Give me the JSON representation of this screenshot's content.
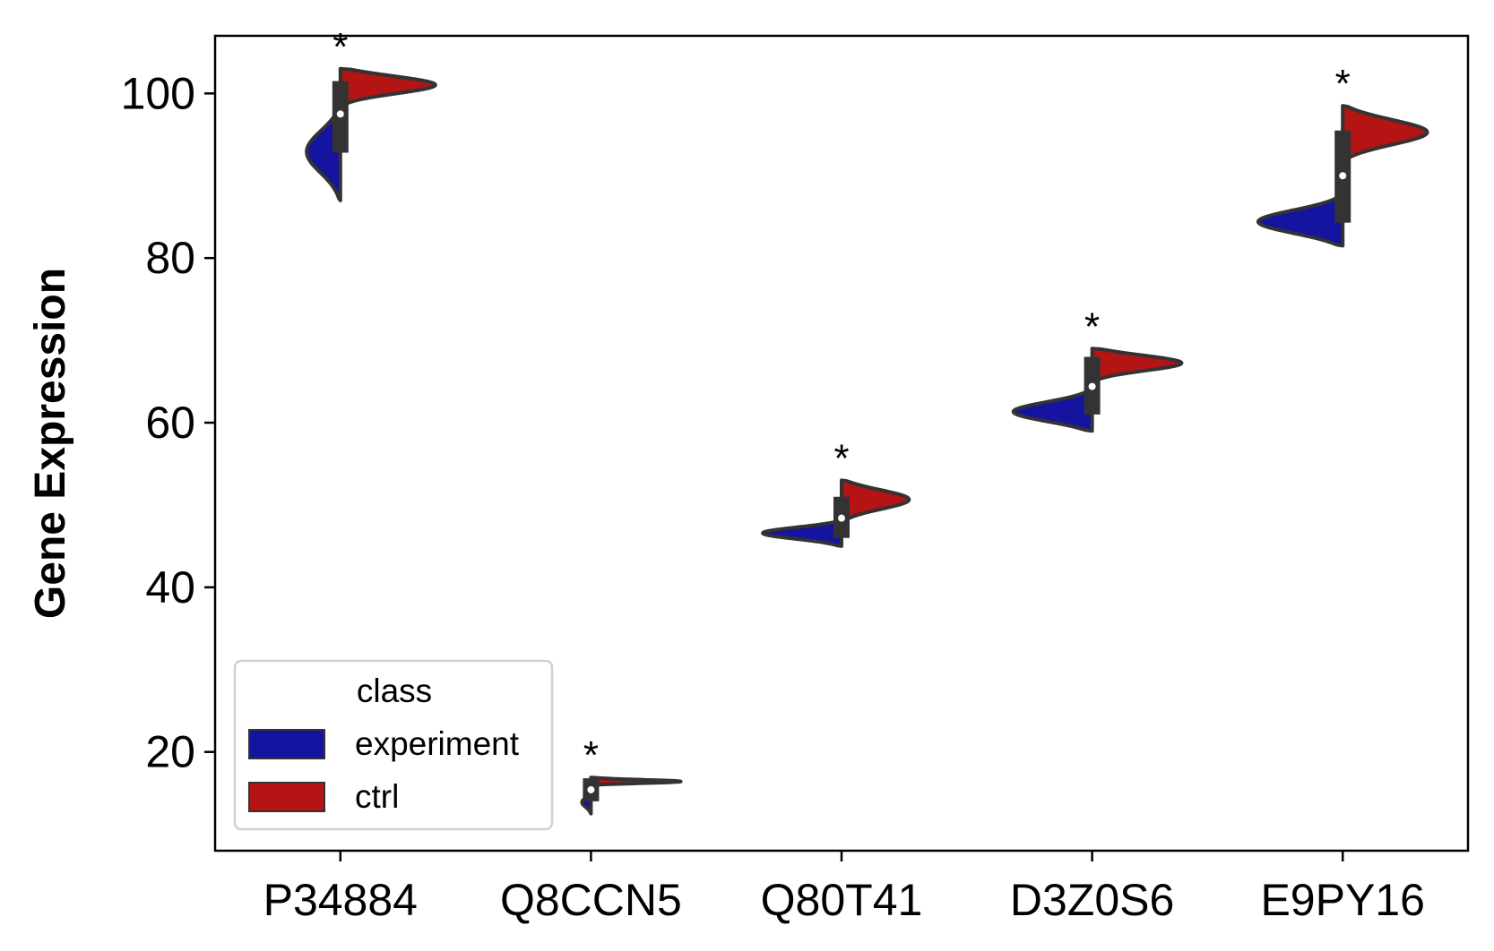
{
  "chart_data": {
    "type": "violin",
    "split": true,
    "title": "",
    "xlabel": "",
    "ylabel": "Gene Expression",
    "ylim": [
      8,
      107
    ],
    "yticks": [
      20,
      40,
      60,
      80,
      100
    ],
    "grid": false,
    "categories": [
      "P34884",
      "Q8CCN5",
      "Q80T41",
      "D3Z0S6",
      "E9PY16"
    ],
    "significance": [
      "*",
      "*",
      "*",
      "*",
      "*"
    ],
    "legend": {
      "title": "class",
      "placement": "lower-left",
      "entries": [
        {
          "name": "experiment",
          "color": "#1414a0"
        },
        {
          "name": "ctrl",
          "color": "#b41414"
        }
      ]
    },
    "series": [
      {
        "name": "experiment",
        "color": "#1414a0",
        "side": "left",
        "violins": [
          {
            "min": 87,
            "max": 98,
            "mode": 93,
            "spread": 0.3
          },
          {
            "min": 12.5,
            "max": 15,
            "mode": 13.9,
            "spread": 0.08
          },
          {
            "min": 45,
            "max": 48,
            "mode": 46.6,
            "spread": 0.7
          },
          {
            "min": 59,
            "max": 64,
            "mode": 61.3,
            "spread": 0.7
          },
          {
            "min": 81.5,
            "max": 87.5,
            "mode": 84.4,
            "spread": 0.75
          }
        ]
      },
      {
        "name": "ctrl",
        "color": "#b41414",
        "side": "right",
        "violins": [
          {
            "min": 98.5,
            "max": 103,
            "mode": 101.1,
            "spread": 0.85
          },
          {
            "min": 16.0,
            "max": 16.9,
            "mode": 16.4,
            "spread": 0.8
          },
          {
            "min": 48,
            "max": 53,
            "mode": 50.7,
            "spread": 0.6
          },
          {
            "min": 65,
            "max": 69,
            "mode": 67.3,
            "spread": 0.8
          },
          {
            "min": 92,
            "max": 98.5,
            "mode": 95.3,
            "spread": 0.75
          }
        ]
      }
    ],
    "inner_box": [
      {
        "q1": 92.8,
        "median": 97.5,
        "q3": 101.5
      },
      {
        "q1": 14.0,
        "median": 15.4,
        "q3": 16.8
      },
      {
        "q1": 46.0,
        "median": 48.4,
        "q3": 51.0
      },
      {
        "q1": 61.0,
        "median": 64.4,
        "q3": 68.0
      },
      {
        "q1": 84.3,
        "median": 90.0,
        "q3": 95.5
      }
    ]
  }
}
